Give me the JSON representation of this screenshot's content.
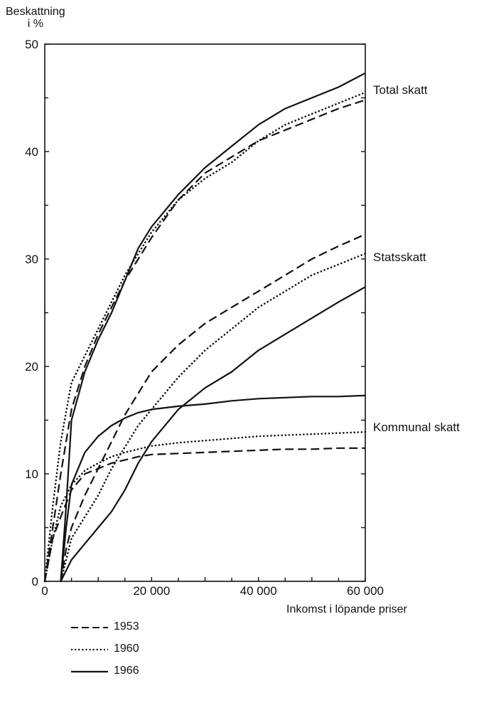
{
  "chart_data": {
    "type": "line",
    "ylabel_lines": [
      "Beskattning",
      "i %"
    ],
    "xlabel": "Inkomst i löpande priser",
    "xlim": [
      0,
      60000
    ],
    "ylim": [
      0,
      50
    ],
    "x_ticks": [
      0,
      20000,
      40000,
      60000
    ],
    "x_tick_labels": [
      "0",
      "20 000",
      "40 000",
      "60 000"
    ],
    "y_ticks": [
      0,
      10,
      20,
      30,
      40,
      50
    ],
    "y_tick_labels": [
      "0",
      "10",
      "20",
      "30",
      "40",
      "50"
    ],
    "grid": false,
    "group_labels": {
      "total": "Total skatt",
      "stat": "Statsskatt",
      "kommunal": "Kommunal skatt"
    },
    "legend": [
      {
        "year": "1953",
        "style": "dashed"
      },
      {
        "year": "1960",
        "style": "dotted"
      },
      {
        "year": "1966",
        "style": "solid"
      }
    ],
    "series": [
      {
        "group": "total",
        "year": "1953",
        "style": "dashed",
        "x": [
          0,
          1500,
          3000,
          5000,
          7500,
          10000,
          12500,
          15000,
          17500,
          20000,
          25000,
          30000,
          35000,
          40000,
          45000,
          50000,
          55000,
          60000
        ],
        "y": [
          0,
          5,
          10,
          16,
          20,
          23,
          25.5,
          28,
          30,
          32,
          35.5,
          38,
          39.5,
          41,
          42,
          43,
          44,
          44.8
        ]
      },
      {
        "group": "total",
        "year": "1960",
        "style": "dotted",
        "x": [
          0,
          1500,
          3000,
          5000,
          7500,
          10000,
          12500,
          15000,
          17500,
          20000,
          25000,
          30000,
          35000,
          40000,
          45000,
          50000,
          55000,
          60000
        ],
        "y": [
          0,
          7,
          13,
          18.5,
          21,
          23.5,
          26,
          28.5,
          30.5,
          32.5,
          35.5,
          37.5,
          39,
          41,
          42.5,
          43.5,
          44.5,
          45.5
        ]
      },
      {
        "group": "total",
        "year": "1966",
        "style": "solid",
        "x": [
          3000,
          4000,
          5000,
          7500,
          10000,
          12500,
          15000,
          17500,
          20000,
          25000,
          30000,
          35000,
          40000,
          45000,
          50000,
          55000,
          60000
        ],
        "y": [
          0,
          7,
          15,
          19.5,
          22.5,
          25,
          28,
          31,
          33,
          36,
          38.5,
          40.5,
          42.5,
          44,
          45,
          46,
          47.3
        ]
      },
      {
        "group": "stat",
        "year": "1953",
        "style": "dashed",
        "x": [
          3000,
          4000,
          5000,
          7500,
          10000,
          12500,
          15000,
          17500,
          20000,
          25000,
          30000,
          35000,
          40000,
          45000,
          50000,
          55000,
          60000
        ],
        "y": [
          0,
          3,
          5,
          8,
          10.5,
          13,
          15.5,
          17.5,
          19.5,
          22,
          24,
          25.5,
          27,
          28.5,
          30,
          31.2,
          32.3
        ]
      },
      {
        "group": "stat",
        "year": "1960",
        "style": "dotted",
        "x": [
          3000,
          4000,
          5000,
          7500,
          10000,
          12500,
          15000,
          17500,
          20000,
          25000,
          30000,
          35000,
          40000,
          45000,
          50000,
          55000,
          60000
        ],
        "y": [
          0,
          2,
          4,
          6,
          8,
          10.5,
          12.5,
          14.5,
          16,
          19,
          21.5,
          23.5,
          25.5,
          27,
          28.5,
          29.5,
          30.5
        ]
      },
      {
        "group": "stat",
        "year": "1966",
        "style": "solid",
        "x": [
          3000,
          5000,
          7500,
          10000,
          12500,
          15000,
          17500,
          20000,
          25000,
          30000,
          35000,
          40000,
          45000,
          50000,
          55000,
          60000
        ],
        "y": [
          0,
          2,
          3.5,
          5,
          6.5,
          8.5,
          11,
          13,
          16,
          18,
          19.5,
          21.5,
          23,
          24.5,
          26,
          27.4
        ]
      },
      {
        "group": "kommunal",
        "year": "1953",
        "style": "dashed",
        "x": [
          0,
          1500,
          3000,
          5000,
          7500,
          10000,
          12500,
          15000,
          17500,
          20000,
          25000,
          30000,
          35000,
          40000,
          45000,
          50000,
          55000,
          60000
        ],
        "y": [
          0,
          4,
          6,
          8.5,
          10,
          10.5,
          11,
          11.3,
          11.6,
          11.8,
          11.9,
          12,
          12.1,
          12.2,
          12.3,
          12.3,
          12.4,
          12.4
        ]
      },
      {
        "group": "kommunal",
        "year": "1960",
        "style": "dotted",
        "x": [
          0,
          1500,
          3000,
          5000,
          7500,
          10000,
          12500,
          15000,
          17500,
          20000,
          25000,
          30000,
          35000,
          40000,
          45000,
          50000,
          55000,
          60000
        ],
        "y": [
          0,
          4,
          7,
          9,
          10.3,
          11,
          11.6,
          12,
          12.3,
          12.6,
          12.9,
          13.1,
          13.3,
          13.5,
          13.6,
          13.7,
          13.8,
          13.9
        ]
      },
      {
        "group": "kommunal",
        "year": "1966",
        "style": "solid",
        "x": [
          3000,
          4000,
          5000,
          7500,
          10000,
          12500,
          15000,
          17500,
          20000,
          25000,
          30000,
          35000,
          40000,
          45000,
          50000,
          55000,
          60000
        ],
        "y": [
          0,
          5,
          9,
          12,
          13.5,
          14.5,
          15.2,
          15.7,
          16,
          16.3,
          16.5,
          16.8,
          17,
          17.1,
          17.2,
          17.2,
          17.3
        ]
      }
    ]
  }
}
